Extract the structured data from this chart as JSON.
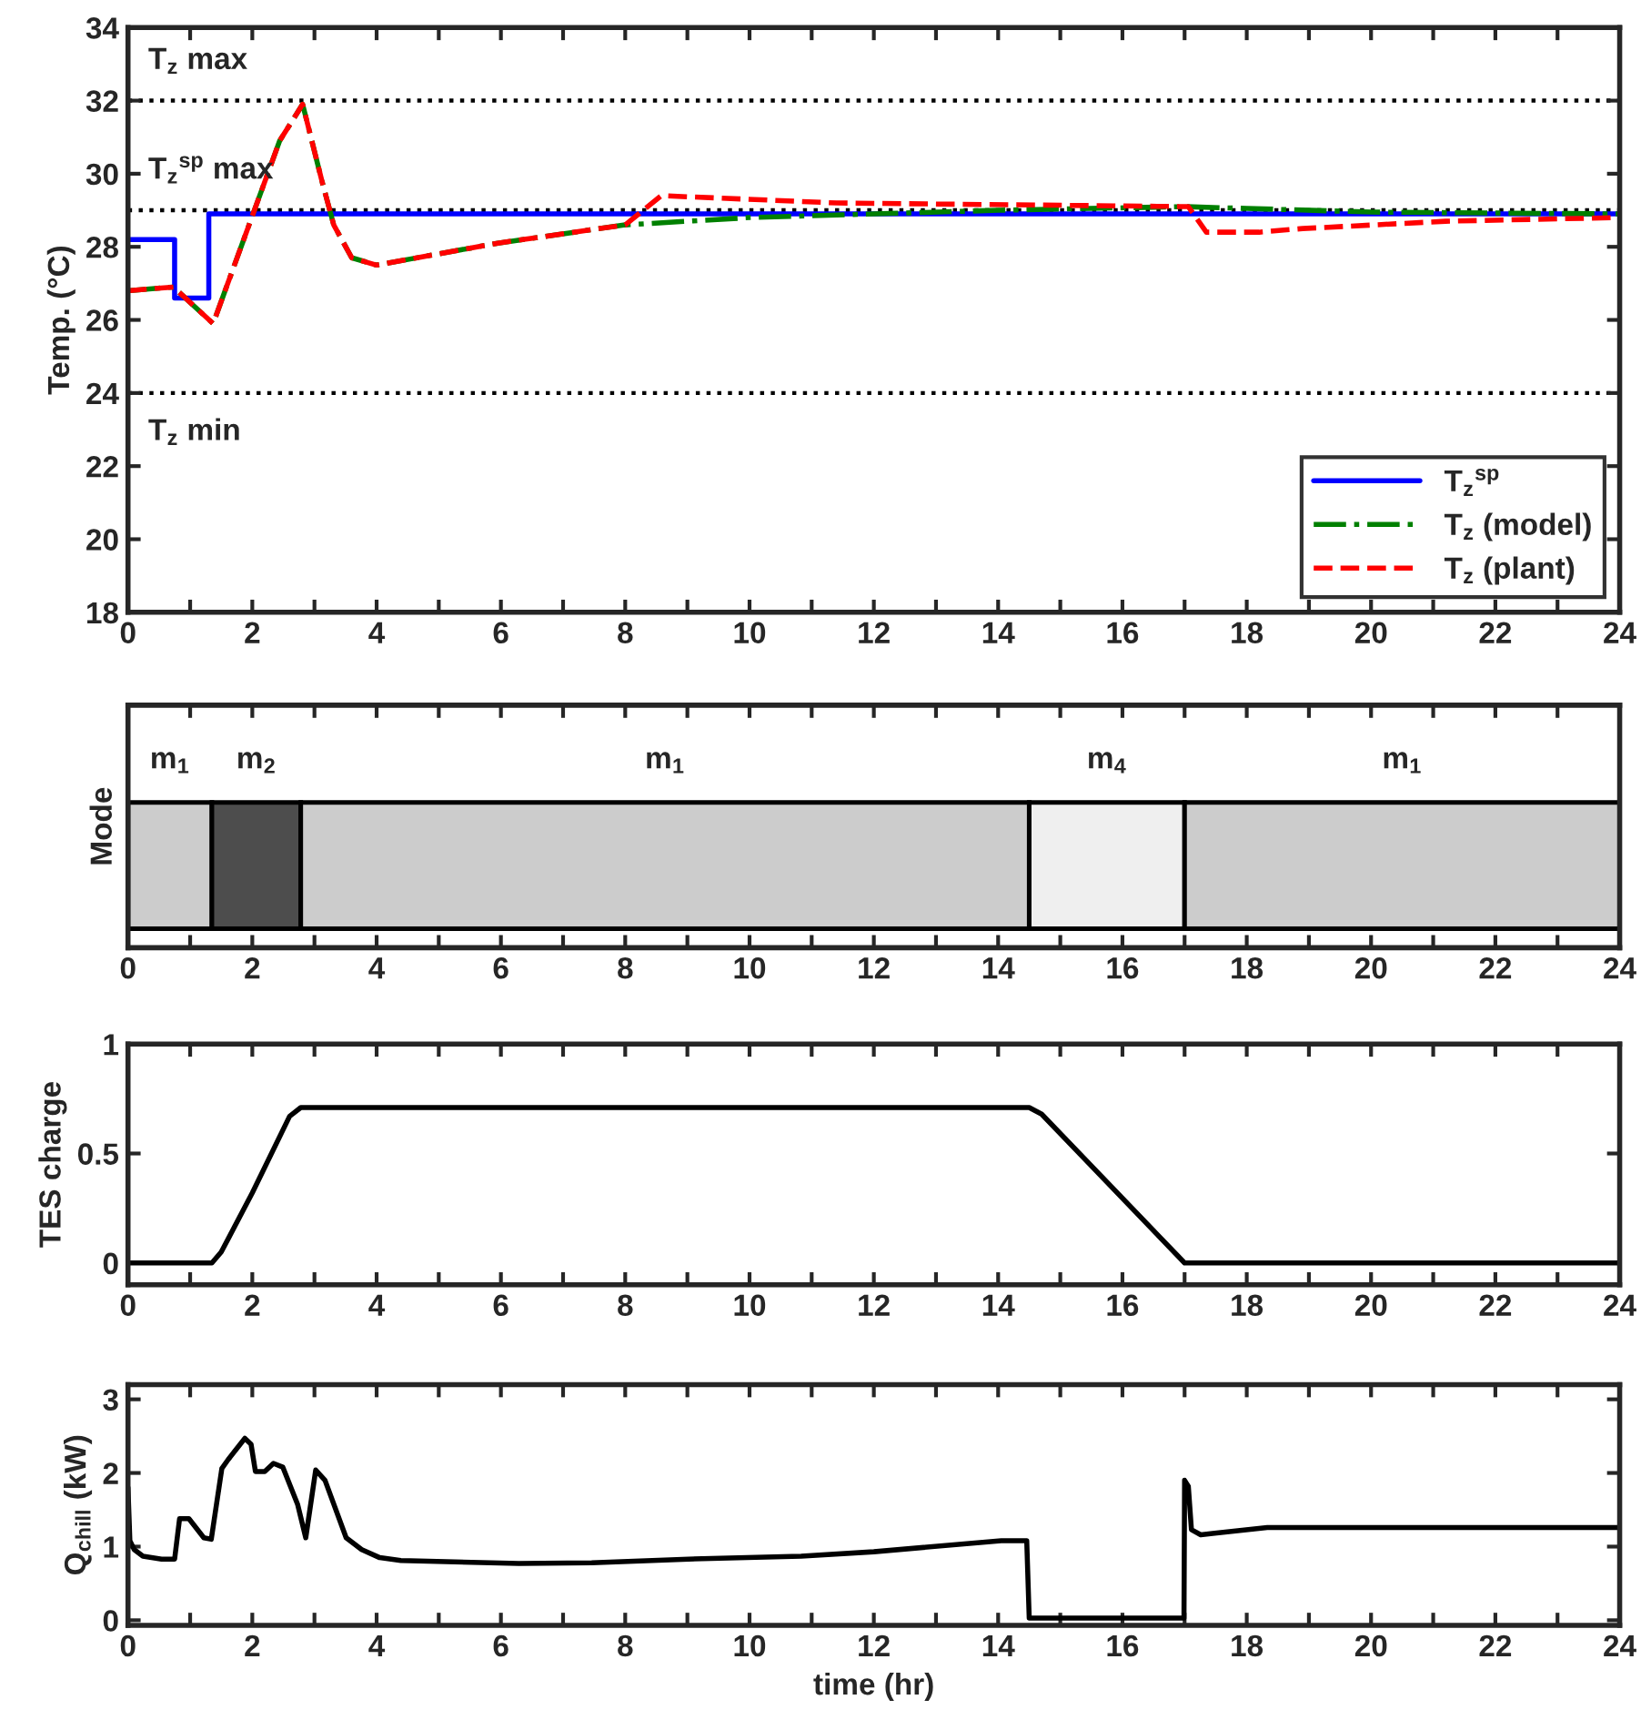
{
  "chart_data": [
    {
      "type": "line",
      "ylabel": "Temp. (°C)",
      "xlim": [
        0,
        24
      ],
      "ylim": [
        18,
        34
      ],
      "xticks": [
        0,
        {
          "value": 1,
          "label": null
        },
        2,
        {
          "value": 3,
          "label": null
        },
        4,
        {
          "value": 5,
          "label": null
        },
        6,
        {
          "value": 7,
          "label": null
        },
        8,
        {
          "value": 9,
          "label": null
        },
        10,
        {
          "value": 11,
          "label": null
        },
        12,
        {
          "value": 13,
          "label": null
        },
        14,
        {
          "value": 15,
          "label": null
        },
        16,
        {
          "value": 17,
          "label": null
        },
        18,
        {
          "value": 19,
          "label": null
        },
        20,
        {
          "value": 21,
          "label": null
        },
        22,
        {
          "value": 23,
          "label": null
        },
        24
      ],
      "yticks": [
        18,
        20,
        22,
        24,
        26,
        28,
        30,
        32,
        34
      ],
      "legend": "bottom right",
      "ref_lines": [
        {
          "axis": "y",
          "value": 32,
          "label": "T$_{z}$ max",
          "color": "#000000",
          "line_style": "dotted"
        },
        {
          "axis": "y",
          "value": 29,
          "label": "T$_{z}$$^{sp}$ max",
          "color": "#000000",
          "line_style": "dotted"
        },
        {
          "axis": "y",
          "value": 24,
          "label": "T$_{z}$ min",
          "color": "#000000",
          "line_style": "dotted"
        }
      ],
      "series": [
        {
          "name": "T$_{z}$$^{sp}$",
          "color": "#0000ff",
          "line_style": "solid",
          "x": [
            0,
            0.75,
            0.75,
            1.3,
            1.3,
            24
          ],
          "values": [
            28.2,
            28.2,
            26.6,
            26.6,
            28.9,
            28.9
          ]
        },
        {
          "name": "T$_{z}$ (model)",
          "color": "#008000",
          "line_style": "dashdot",
          "x": [
            0,
            0.73,
            1.37,
            2.44,
            2.81,
            3.12,
            3.31,
            3.6,
            4.0,
            5.95,
            8.0,
            10,
            12,
            14,
            17,
            18,
            20,
            24
          ],
          "values": [
            26.8,
            26.9,
            25.9,
            30.9,
            31.9,
            29.8,
            28.6,
            27.7,
            27.5,
            28.1,
            28.6,
            28.8,
            28.9,
            29.0,
            29.1,
            29.05,
            28.95,
            28.9
          ]
        },
        {
          "name": "T$_{z}$ (plant)",
          "color": "#ff0000",
          "line_style": "dashed",
          "x": [
            0,
            0.73,
            1.37,
            2.44,
            2.81,
            3.12,
            3.31,
            3.6,
            4.0,
            5.95,
            8.0,
            8.58,
            11.4,
            17.06,
            17.35,
            18.2,
            18.9,
            21.2,
            24
          ],
          "values": [
            26.8,
            26.9,
            25.9,
            30.9,
            31.9,
            29.8,
            28.6,
            27.7,
            27.5,
            28.1,
            28.6,
            29.4,
            29.2,
            29.1,
            28.4,
            28.4,
            28.5,
            28.7,
            28.8
          ]
        }
      ]
    },
    {
      "type": "bar",
      "orientation": "horizontal",
      "stacked": true,
      "ylabel": "Mode",
      "categories": [
        null
      ],
      "xlim": [
        0,
        24
      ],
      "tick_labels": "x",
      "xticks": [
        0,
        {
          "value": 1,
          "label": null
        },
        2,
        {
          "value": 3,
          "label": null
        },
        4,
        {
          "value": 5,
          "label": null
        },
        6,
        {
          "value": 7,
          "label": null
        },
        8,
        {
          "value": 9,
          "label": null
        },
        10,
        {
          "value": 11,
          "label": null
        },
        12,
        {
          "value": 13,
          "label": null
        },
        14,
        {
          "value": 15,
          "label": null
        },
        16,
        {
          "value": 17,
          "label": null
        },
        18,
        {
          "value": 19,
          "label": null
        },
        20,
        {
          "value": 21,
          "label": null
        },
        22,
        {
          "value": 23,
          "label": null
        },
        24
      ],
      "series": [
        {
          "name": "m$_{1}$",
          "color": "#cccccc",
          "values": [
            1.35
          ]
        },
        {
          "name": "m$_{2}$",
          "color": "#4d4d4d",
          "values": [
            1.43
          ]
        },
        {
          "name": "m$_{1}$",
          "color": "#cccccc",
          "values": [
            11.72
          ]
        },
        {
          "name": "m$_{4}$",
          "color": "#efefef",
          "values": [
            2.5
          ]
        },
        {
          "name": "m$_{1}$",
          "color": "#cccccc",
          "values": [
            7.0
          ]
        }
      ]
    },
    {
      "type": "line",
      "ylabel": "TES charge",
      "xlim": [
        0,
        24
      ],
      "ylim": [
        -0.1,
        1
      ],
      "xticks": [
        0,
        {
          "value": 1,
          "label": null
        },
        2,
        {
          "value": 3,
          "label": null
        },
        4,
        {
          "value": 5,
          "label": null
        },
        6,
        {
          "value": 7,
          "label": null
        },
        8,
        {
          "value": 9,
          "label": null
        },
        10,
        {
          "value": 11,
          "label": null
        },
        12,
        {
          "value": 13,
          "label": null
        },
        14,
        {
          "value": 15,
          "label": null
        },
        16,
        {
          "value": 17,
          "label": null
        },
        18,
        {
          "value": 19,
          "label": null
        },
        20,
        {
          "value": 21,
          "label": null
        },
        22,
        {
          "value": 23,
          "label": null
        },
        24
      ],
      "yticks": [
        0,
        0.5,
        1
      ],
      "series": [
        {
          "color": "#000000",
          "line_style": "solid",
          "x": [
            0,
            1.35,
            1.5,
            2.0,
            2.6,
            2.78,
            14.5,
            14.7,
            17.0,
            24
          ],
          "values": [
            0,
            0,
            0.05,
            0.32,
            0.67,
            0.71,
            0.71,
            0.68,
            0,
            0
          ]
        }
      ]
    },
    {
      "type": "line",
      "xlabel": "time (hr)",
      "ylabel": "Q$_{chill}$ (kW)",
      "xlim": [
        0,
        24
      ],
      "ylim": [
        -0.07,
        3.2
      ],
      "xticks": [
        0,
        {
          "value": 1,
          "label": null
        },
        2,
        {
          "value": 3,
          "label": null
        },
        4,
        {
          "value": 5,
          "label": null
        },
        6,
        {
          "value": 7,
          "label": null
        },
        8,
        {
          "value": 9,
          "label": null
        },
        10,
        {
          "value": 11,
          "label": null
        },
        12,
        {
          "value": 13,
          "label": null
        },
        14,
        {
          "value": 15,
          "label": null
        },
        16,
        {
          "value": 17,
          "label": null
        },
        18,
        {
          "value": 19,
          "label": null
        },
        20,
        {
          "value": 21,
          "label": null
        },
        22,
        {
          "value": 23,
          "label": null
        },
        24
      ],
      "yticks": [
        0,
        1,
        2,
        3
      ],
      "series": [
        {
          "color": "#000000",
          "line_style": "solid",
          "x": [
            0,
            0.03,
            0.1,
            0.24,
            0.54,
            0.75,
            0.83,
            0.98,
            1.22,
            1.34,
            1.51,
            1.61,
            1.88,
            1.98,
            2.05,
            2.2,
            2.34,
            2.49,
            2.73,
            2.86,
            3.02,
            3.17,
            3.51,
            3.76,
            4.05,
            4.39,
            6.29,
            7.46,
            9.02,
            10.83,
            12,
            14.05,
            14.46,
            14.5,
            16.99,
            17.0,
            17.06,
            17.11,
            17.26,
            17.45,
            18.33,
            24
          ],
          "values": [
            1.8,
            1.08,
            0.96,
            0.87,
            0.83,
            0.83,
            1.38,
            1.38,
            1.12,
            1.1,
            2.06,
            2.18,
            2.47,
            2.39,
            2.02,
            2.02,
            2.13,
            2.08,
            1.57,
            1.12,
            2.04,
            1.9,
            1.12,
            0.96,
            0.85,
            0.81,
            0.77,
            0.78,
            0.83,
            0.87,
            0.93,
            1.08,
            1.08,
            0.03,
            0.03,
            1.9,
            1.82,
            1.23,
            1.16,
            1.18,
            1.26,
            1.26
          ]
        }
      ]
    }
  ]
}
